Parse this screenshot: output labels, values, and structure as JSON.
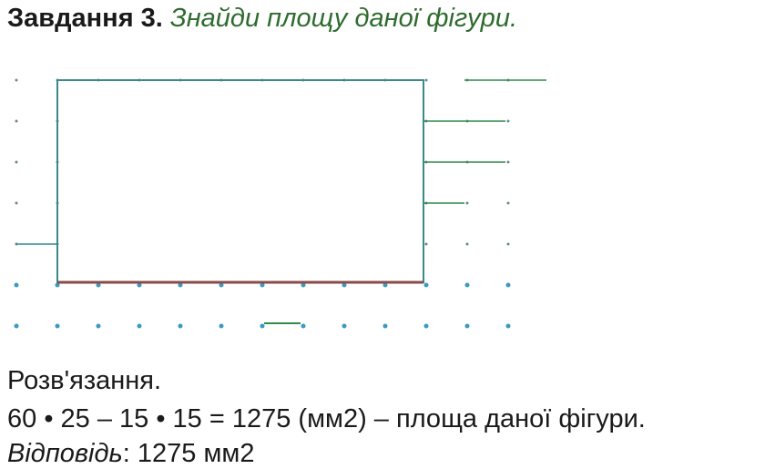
{
  "task": {
    "label": "Завдання 3.",
    "text": "Знайди площу даної фігури."
  },
  "solution": {
    "heading": "Розв'язання.",
    "equation": "60 • 25 – 15 • 15 = 1275 (мм2) – площа даної фігури."
  },
  "answer": {
    "label": "Відповідь",
    "text": ": 1275 мм2"
  }
}
